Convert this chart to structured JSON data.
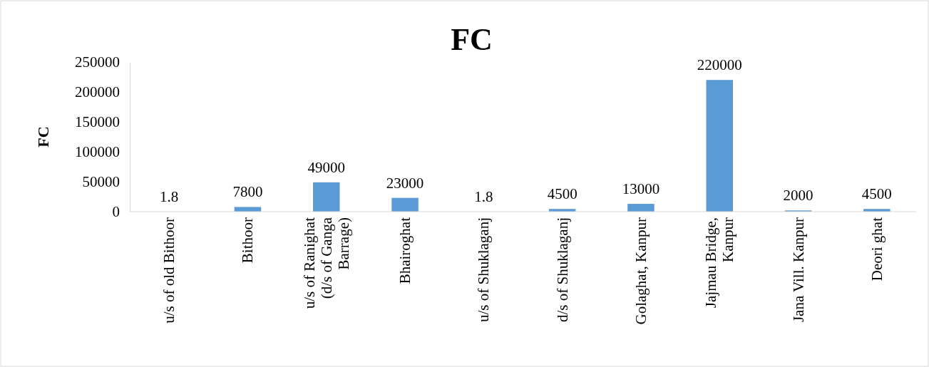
{
  "chart_data": {
    "type": "bar",
    "title": "FC",
    "ylabel": "FC",
    "categories": [
      "u/s of old Bithoor",
      "Bithoor",
      "u/s of Ranighat (d/s of Ganga Barrage)",
      "Bhairoghat",
      "u/s of Shuklaganj",
      "d/s of Shuklaganj",
      "Golaghat, Kanpur",
      "Jajmau Bridge, Kanpur",
      "Jana Vill. Kanpur",
      "Deori ghat"
    ],
    "values": [
      1.8,
      7800,
      49000,
      23000,
      1.8,
      4500,
      13000,
      220000,
      2000,
      4500
    ],
    "color": "#5b9bd5",
    "ylim": [
      0,
      250000
    ],
    "yticks": [
      0,
      50000,
      100000,
      150000,
      200000,
      250000
    ],
    "data_labels": true
  }
}
